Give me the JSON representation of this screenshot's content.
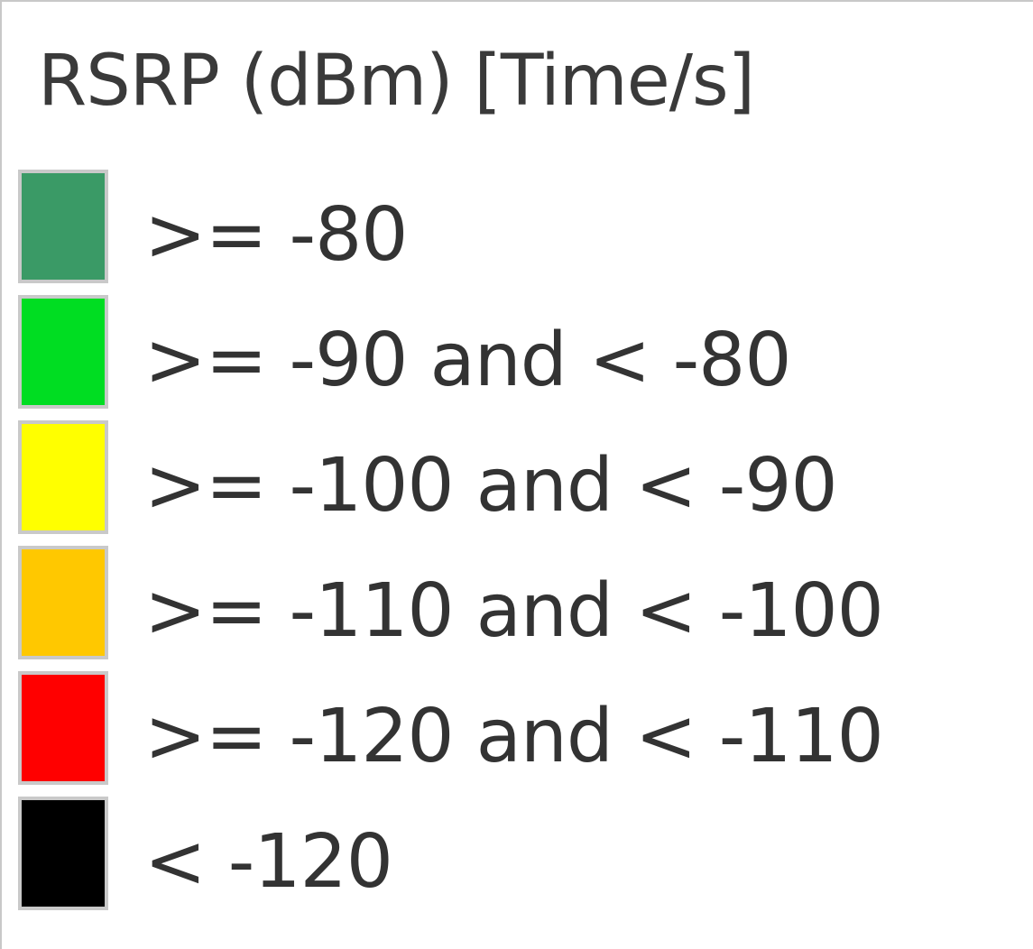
{
  "legend": {
    "title": "RSRP (dBm) [Time/s]",
    "items": [
      {
        "label": ">= -80",
        "color": "#3a9a66"
      },
      {
        "label": ">= -90 and < -80",
        "color": "#00dd22"
      },
      {
        "label": ">= -100 and < -90",
        "color": "#ffff00"
      },
      {
        "label": ">= -110 and < -100",
        "color": "#ffc800"
      },
      {
        "label": ">= -120 and < -110",
        "color": "#ff0000"
      },
      {
        "label": "< -120",
        "color": "#000000"
      }
    ]
  }
}
